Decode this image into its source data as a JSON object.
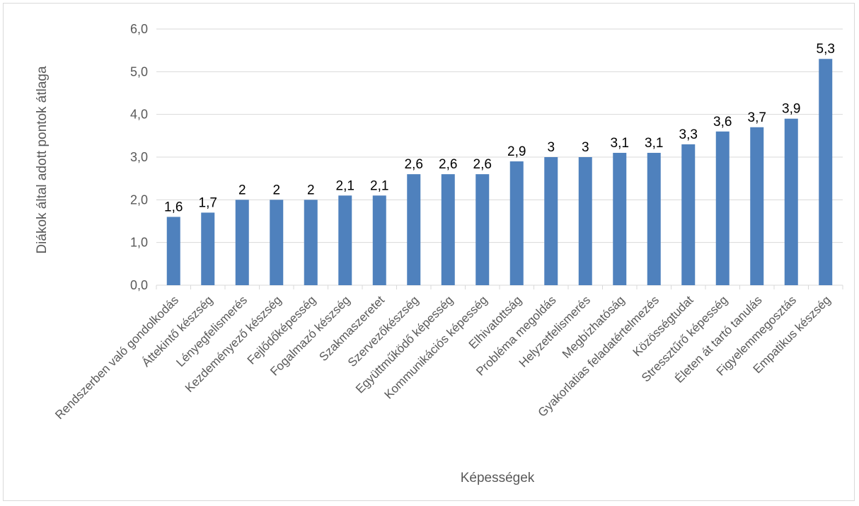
{
  "chart_data": {
    "type": "bar",
    "categories": [
      "Rendszerben való gondolkodás",
      "Áttekintő készség",
      "Lényegfelismerés",
      "Kezdeményező készség",
      "Fejlődőképesség",
      "Fogalmazó készség",
      "Szakmaszeretet",
      "Szervezőkészség",
      "Együttműködő képesség",
      "Kommunikációs képesség",
      "Elhivatottság",
      "Probléma megoldás",
      "Helyzetfelismerés",
      "Megbízhatóság",
      "Gyakorlatias feladatértelmezés",
      "Közösségtudat",
      "Stressztűrő képesség",
      "Életen át tartó tanulás",
      "Figyelemmegosztás",
      "Empatikus készség"
    ],
    "values": [
      1.6,
      1.7,
      2,
      2,
      2,
      2.1,
      2.1,
      2.6,
      2.6,
      2.6,
      2.9,
      3,
      3,
      3.1,
      3.1,
      3.3,
      3.6,
      3.7,
      3.9,
      5.3
    ],
    "data_labels": [
      "1,6",
      "1,7",
      "2",
      "2",
      "2",
      "2,1",
      "2,1",
      "2,6",
      "2,6",
      "2,6",
      "2,9",
      "3",
      "3",
      "3,1",
      "3,1",
      "3,3",
      "3,6",
      "3,7",
      "3,9",
      "5,3"
    ],
    "yticks": [
      "0,0",
      "1,0",
      "2,0",
      "3,0",
      "4,0",
      "5,0",
      "6,0"
    ],
    "ylim": [
      0,
      6
    ],
    "xlabel": "Képességek",
    "ylabel": "Diákok által adott pontok átlaga",
    "title": "",
    "grid": true,
    "legend": "none",
    "bar_color": "#4f81bd",
    "grid_color": "#d9d9d9"
  }
}
